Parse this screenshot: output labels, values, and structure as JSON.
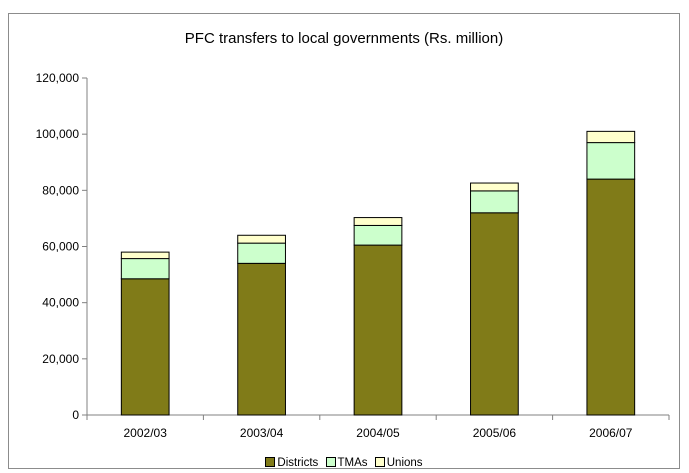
{
  "chart_data": {
    "type": "bar",
    "stacked": true,
    "title": "PFC transfers to local governments (Rs. million)",
    "xlabel": "",
    "ylabel": "",
    "categories": [
      "2002/03",
      "2003/04",
      "2004/05",
      "2005/06",
      "2006/07"
    ],
    "series": [
      {
        "name": "Districts",
        "color": "#807b18",
        "values": [
          48500,
          54000,
          60500,
          72000,
          84000
        ]
      },
      {
        "name": "TMAs",
        "color": "#ccffcc",
        "values": [
          7200,
          7200,
          7000,
          7800,
          13000
        ]
      },
      {
        "name": "Unions",
        "color": "#ffffcc",
        "values": [
          2300,
          2800,
          2800,
          2800,
          4000
        ]
      }
    ],
    "ylim": [
      0,
      120000
    ],
    "yticks": [
      0,
      20000,
      40000,
      60000,
      80000,
      100000,
      120000
    ],
    "ytick_labels": [
      "0",
      "20,000",
      "40,000",
      "60,000",
      "80,000",
      "100,000",
      "120,000"
    ],
    "grid": false,
    "legend_position": "bottom"
  }
}
